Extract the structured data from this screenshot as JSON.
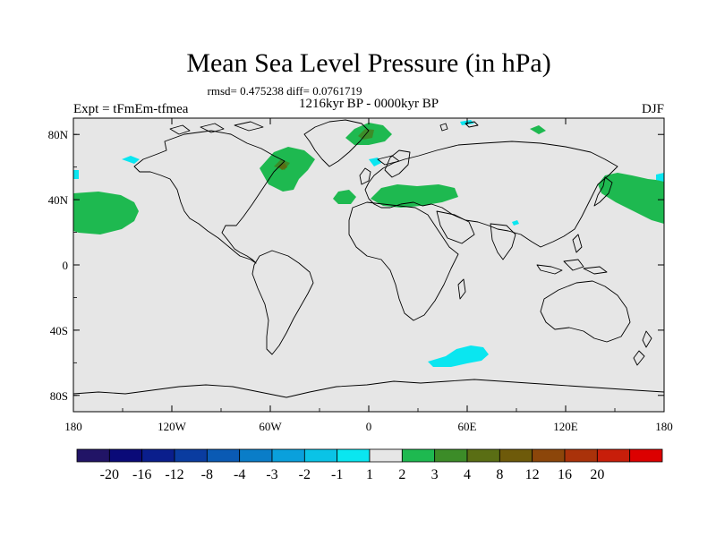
{
  "chart_data": {
    "type": "heatmap",
    "title": "Mean Sea Level Pressure (in hPa)",
    "stats_line": "rmsd= 0.475238 diff= 0.0761719",
    "left_label": "Expt = tFmEm-tfmea",
    "center_label": "1216kyr BP - 0000kyr BP",
    "right_label": "DJF",
    "x_ticks": [
      "180",
      "120W",
      "60W",
      "0",
      "60E",
      "120E",
      "180"
    ],
    "y_ticks": [
      "80N",
      "40N",
      "0",
      "40S",
      "80S"
    ],
    "lon_range": [
      -180,
      180
    ],
    "lat_range": [
      -90,
      90
    ],
    "colorbar": {
      "colors": [
        "#211466",
        "#0a0a78",
        "#0a1e8c",
        "#0a3ca0",
        "#0a5ab4",
        "#0a7dc8",
        "#0aa0dc",
        "#0ac3e6",
        "#0ae6f0",
        "#e6e6e6",
        "#1eb950",
        "#3c8c28",
        "#5a6e14",
        "#6e5a0a",
        "#8c460a",
        "#aa320a",
        "#c81e0a",
        "#dc0000"
      ],
      "labels": [
        "-20",
        "-16",
        "-12",
        "-8",
        "-4",
        "-3",
        "-2",
        "-1",
        "1",
        "2",
        "3",
        "4",
        "8",
        "12",
        "16",
        "20"
      ]
    },
    "anomalies": [
      {
        "name": "north-pacific-west-positive",
        "lon": -170,
        "lat": 40,
        "value": 2
      },
      {
        "name": "north-pacific-east-positive",
        "lon": 170,
        "lat": 40,
        "value": 2
      },
      {
        "name": "north-atlantic-positive",
        "lon": -50,
        "lat": 62,
        "value": 2
      },
      {
        "name": "greenland-max",
        "lon": -5,
        "lat": 82,
        "value": 3
      },
      {
        "name": "europe-positive",
        "lon": 20,
        "lat": 44,
        "value": 2
      },
      {
        "name": "southern-ocean-negative",
        "lon": 55,
        "lat": -60,
        "value": -2
      }
    ]
  }
}
